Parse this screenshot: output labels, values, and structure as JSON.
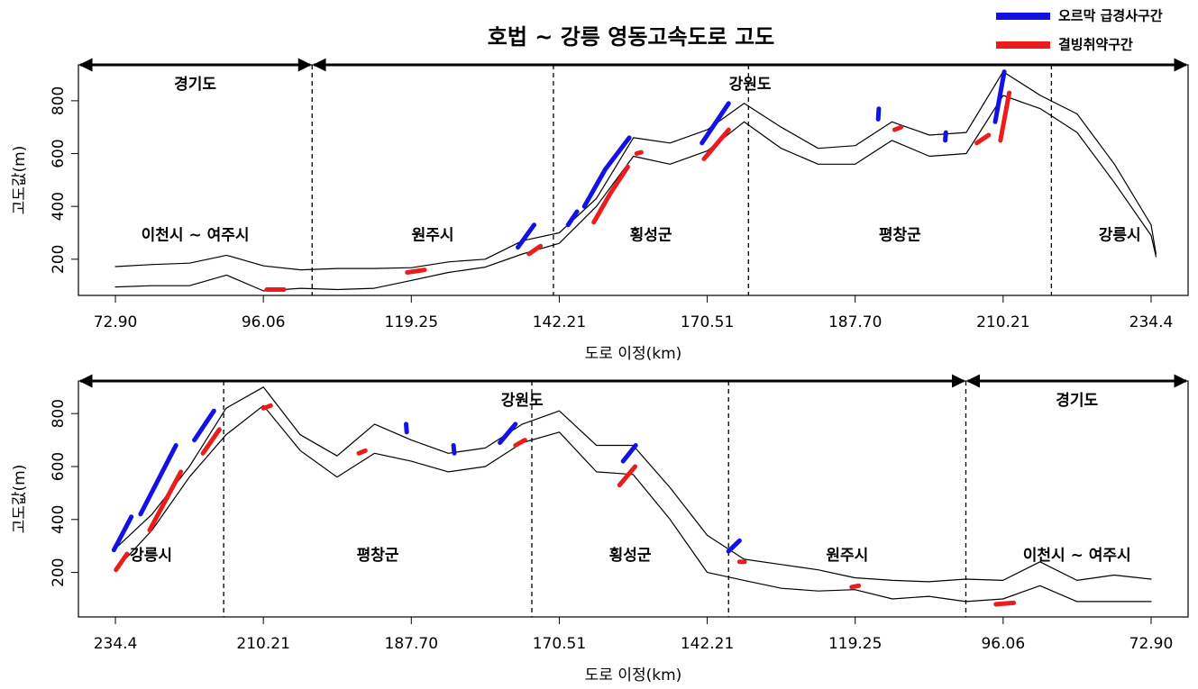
{
  "chart_data": [
    {
      "type": "line",
      "title": "호법 ~ 강릉 영동고속도로 고도",
      "legend": "upper right",
      "x_label": "도로 이정(km)",
      "y_label": "고도값(m)",
      "xlim": [
        67.1,
        242.0
      ],
      "xticks": [
        {
          "value": 72.9,
          "label": "72.90"
        },
        96.06,
        119.25,
        142.21,
        170.51,
        {
          "value": 187.7,
          "label": "187.70"
        },
        210.21,
        234.4
      ],
      "ylim": [
        63,
        936
      ],
      "yticks": [
        200,
        400,
        600,
        800
      ],
      "boundaries": [
        103.7,
        141.3,
        175.3,
        218.1
      ],
      "provinces": [
        {
          "label": "경기도",
          "cities": [
            "이천시 ~ 여주시"
          ]
        },
        {
          "label": "강원도",
          "cities": [
            "원주시",
            "횡성군",
            "평창군",
            "강릉시"
          ]
        }
      ],
      "x": [
        72.9,
        78.7,
        84.5,
        90.3,
        96.1,
        101.9,
        107.7,
        113.4,
        119.3,
        125.0,
        130.7,
        136.5,
        142.2,
        149.3,
        156.4,
        163.4,
        170.5,
        174.8,
        179.1,
        183.4,
        187.7,
        193.3,
        199.0,
        204.6,
        210.2,
        216.3,
        222.3,
        228.4,
        234.4,
        235.4
      ],
      "series": [
        {
          "color": "#000000",
          "values": [
            172,
            180,
            185,
            215,
            175,
            160,
            165,
            165,
            168,
            190,
            200,
            270,
            300,
            430,
            660,
            640,
            690,
            790,
            700,
            620,
            630,
            720,
            670,
            680,
            910,
            820,
            750,
            560,
            330,
            220
          ]
        },
        {
          "color": "#000000",
          "values": [
            95,
            100,
            100,
            140,
            80,
            90,
            85,
            90,
            120,
            150,
            170,
            220,
            260,
            400,
            590,
            560,
            610,
            720,
            620,
            560,
            560,
            650,
            590,
            600,
            820,
            770,
            680,
            490,
            290,
            210
          ]
        },
        {
          "name": "오르막 급경사구간",
          "color": "#1212e6",
          "x": [
            135.8,
            138.3,
            null,
            143.9,
            145.6,
            null,
            147.0,
            151.0,
            155.6,
            null,
            169.5,
            173.0,
            null,
            191.2,
            191.3,
            null,
            201.4,
            201.5,
            null,
            209.0,
            210.4
          ],
          "values": [
            245,
            330,
            null,
            330,
            380,
            null,
            400,
            540,
            660,
            null,
            640,
            790,
            null,
            730,
            770,
            null,
            650,
            680,
            null,
            720,
            910
          ]
        },
        {
          "name": "결빙취약구간",
          "color": "#ec1c1c",
          "x": [
            96.6,
            99.3,
            null,
            118.6,
            121.3,
            null,
            137.5,
            139.3,
            null,
            148.8,
            152.0,
            155.3,
            null,
            157.0,
            157.9,
            null,
            169.9,
            173.0,
            null,
            193.7,
            194.7,
            null,
            206.2,
            208.0,
            null,
            209.8,
            211.2
          ],
          "values": [
            85,
            85,
            null,
            150,
            160,
            null,
            220,
            250,
            null,
            340,
            450,
            550,
            null,
            600,
            605,
            null,
            580,
            690,
            null,
            690,
            700,
            null,
            640,
            670,
            null,
            650,
            830
          ]
        }
      ]
    },
    {
      "type": "line",
      "x_label": "도로 이정(km)",
      "y_label": "고도값(m)",
      "xlim": [
        242.0,
        67.1
      ],
      "xticks": [
        234.4,
        210.21,
        {
          "value": 187.7,
          "label": "187.70"
        },
        170.51,
        142.21,
        119.25,
        96.06,
        {
          "value": 72.9,
          "label": "72.90"
        }
      ],
      "ylim": [
        32,
        923
      ],
      "yticks": [
        200,
        400,
        600,
        800
      ],
      "boundaries": [
        216.7,
        173.7,
        138.9,
        101.9
      ],
      "provinces": [
        {
          "label": "강원도",
          "cities": [
            "강릉시",
            "평창군",
            "횡성군",
            "원주시"
          ]
        },
        {
          "label": "경기도",
          "cities": [
            "이천시 ~ 여주시"
          ]
        }
      ],
      "x": [
        234.4,
        228.4,
        222.3,
        216.3,
        210.2,
        204.6,
        199.0,
        193.3,
        187.7,
        183.4,
        179.1,
        174.8,
        170.5,
        163.4,
        156.4,
        149.3,
        142.2,
        136.5,
        130.7,
        125.0,
        119.3,
        113.4,
        107.7,
        101.9,
        96.1,
        90.3,
        84.5,
        78.7,
        72.9
      ],
      "series": [
        {
          "color": "#000000",
          "values": [
            290,
            420,
            600,
            820,
            900,
            720,
            640,
            760,
            700,
            650,
            670,
            760,
            810,
            680,
            680,
            520,
            340,
            250,
            230,
            210,
            180,
            170,
            165,
            175,
            170,
            240,
            170,
            190,
            175
          ]
        },
        {
          "color": "#000000",
          "values": [
            210,
            360,
            560,
            720,
            830,
            660,
            560,
            650,
            620,
            580,
            600,
            690,
            730,
            580,
            570,
            400,
            200,
            170,
            140,
            130,
            135,
            100,
            110,
            90,
            100,
            150,
            90,
            90,
            90
          ]
        },
        {
          "color": "#1212e6",
          "x": [
            234.7,
            231.8,
            null,
            230.3,
            224.5,
            null,
            221.5,
            218.3,
            null,
            188.4,
            188.5,
            null,
            182.7,
            182.8,
            null,
            177.4,
            175.6,
            null,
            158.3,
            155.9,
            null,
            138.9,
            137.2
          ],
          "values": [
            285,
            410,
            null,
            420,
            680,
            null,
            700,
            810,
            null,
            730,
            760,
            null,
            650,
            680,
            null,
            690,
            760,
            null,
            620,
            680,
            null,
            280,
            320
          ]
        },
        {
          "color": "#ec1c1c",
          "x": [
            234.3,
            232.5,
            null,
            228.8,
            223.7,
            null,
            220.1,
            217.4,
            null,
            210.2,
            209.1,
            null,
            195.7,
            194.7,
            null,
            175.6,
            174.5,
            null,
            159.0,
            156.0,
            null,
            137.2,
            136.4,
            null,
            119.8,
            118.7,
            null,
            97.2,
            94.4
          ],
          "values": [
            210,
            270,
            null,
            360,
            580,
            null,
            650,
            740,
            null,
            820,
            830,
            null,
            650,
            660,
            null,
            680,
            700,
            null,
            530,
            600,
            null,
            240,
            240,
            null,
            145,
            150,
            null,
            80,
            85
          ]
        }
      ]
    }
  ]
}
